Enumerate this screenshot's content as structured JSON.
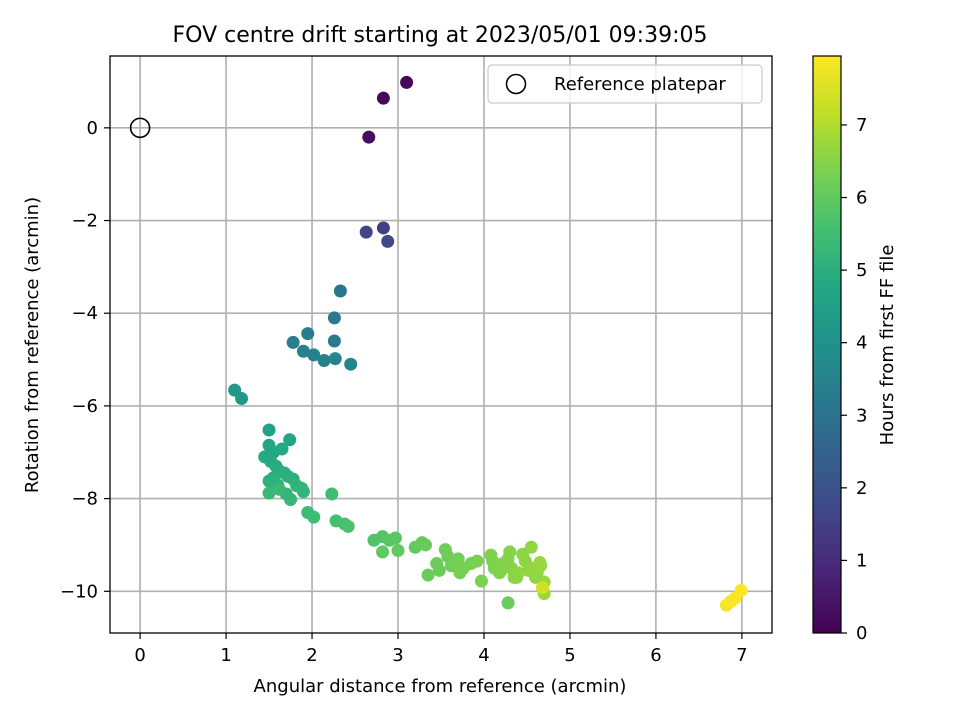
{
  "chart_data": {
    "type": "scatter",
    "title": "FOV centre drift starting at 2023/05/01 09:39:05",
    "xlabel": "Angular distance from reference (arcmin)",
    "ylabel": "Rotation from reference (arcmin)",
    "xlim": [
      -0.35,
      7.35
    ],
    "ylim": [
      -10.9,
      1.55
    ],
    "xticks": [
      0,
      1,
      2,
      3,
      4,
      5,
      6,
      7
    ],
    "xtick_labels": [
      "0",
      "1",
      "2",
      "3",
      "4",
      "5",
      "6",
      "7"
    ],
    "yticks": [
      0,
      -2,
      -4,
      -6,
      -8,
      -10
    ],
    "ytick_labels": [
      "0",
      "−2",
      "−4",
      "−6",
      "−8",
      "−10"
    ],
    "grid": true,
    "legend_position": "top-right",
    "colormap": "viridis",
    "colorbar": {
      "label": "Hours from first FF file",
      "range": [
        0,
        7.95
      ],
      "ticks": [
        0,
        1,
        2,
        3,
        4,
        5,
        6,
        7
      ],
      "tick_labels": [
        "0",
        "1",
        "2",
        "3",
        "4",
        "5",
        "6",
        "7"
      ]
    },
    "reference": {
      "name": "Reference platepar",
      "x": 0,
      "y": 0,
      "marker": "hollow circle",
      "color": "#000000"
    },
    "series": [
      {
        "x": [
          3.1,
          2.83,
          2.66,
          2.83,
          2.63,
          2.88,
          2.33,
          2.26,
          2.26,
          1.95,
          1.78,
          1.9,
          2.02,
          2.14,
          2.27,
          2.45,
          1.1,
          1.18,
          1.5,
          1.74,
          1.5,
          1.55,
          1.65,
          1.45,
          1.52,
          1.58,
          1.62,
          1.68,
          1.55,
          1.72,
          1.78,
          1.5,
          1.6,
          1.82,
          1.88,
          1.9,
          1.7,
          1.75,
          1.5,
          1.62,
          1.95,
          2.02,
          2.23,
          2.28,
          2.38,
          2.42,
          2.72,
          2.82,
          2.9,
          2.97,
          2.82,
          3.0,
          3.2,
          3.28,
          3.32,
          3.35,
          3.45,
          3.48,
          3.55,
          3.58,
          3.62,
          3.7,
          3.76,
          3.72,
          3.85,
          3.92,
          3.97,
          4.08,
          4.12,
          4.18,
          4.22,
          4.28,
          4.32,
          4.38,
          4.45,
          4.48,
          4.52,
          4.58,
          4.62,
          4.66,
          4.7,
          4.1,
          4.15,
          4.2,
          4.25,
          4.3,
          4.35,
          4.4,
          4.55,
          4.6,
          4.65,
          4.28,
          4.7,
          4.68,
          6.82,
          6.87,
          6.92,
          6.99
        ],
        "y": [
          0.98,
          0.64,
          -0.2,
          -2.16,
          -2.25,
          -2.45,
          -3.52,
          -4.1,
          -4.6,
          -4.44,
          -4.63,
          -4.82,
          -4.9,
          -5.02,
          -4.98,
          -5.1,
          -5.66,
          -5.84,
          -6.52,
          -6.73,
          -6.85,
          -7.0,
          -6.93,
          -7.1,
          -7.2,
          -7.3,
          -7.4,
          -7.45,
          -7.55,
          -7.52,
          -7.58,
          -7.62,
          -7.7,
          -7.72,
          -7.78,
          -7.85,
          -7.9,
          -8.02,
          -7.88,
          -7.8,
          -8.3,
          -8.4,
          -7.9,
          -8.48,
          -8.55,
          -8.6,
          -8.9,
          -8.82,
          -8.9,
          -8.85,
          -9.15,
          -9.12,
          -9.05,
          -8.95,
          -9.0,
          -9.65,
          -9.4,
          -9.55,
          -9.1,
          -9.25,
          -9.45,
          -9.3,
          -9.5,
          -9.6,
          -9.4,
          -9.35,
          -9.78,
          -9.22,
          -9.5,
          -9.6,
          -9.4,
          -9.3,
          -9.5,
          -9.7,
          -9.2,
          -9.35,
          -9.55,
          -9.5,
          -9.6,
          -9.45,
          -9.8,
          -9.35,
          -9.45,
          -9.55,
          -9.45,
          -9.15,
          -9.7,
          -9.6,
          -9.05,
          -9.7,
          -9.38,
          -10.25,
          -10.05,
          -9.92,
          -10.3,
          -10.22,
          -10.15,
          -9.98
        ],
        "hours": [
          0.15,
          0.25,
          0.3,
          1.5,
          1.65,
          1.7,
          3.1,
          3.2,
          3.25,
          3.3,
          3.35,
          3.4,
          3.45,
          3.5,
          3.55,
          3.6,
          4.2,
          4.25,
          4.6,
          4.65,
          4.7,
          4.75,
          4.8,
          4.82,
          4.85,
          4.88,
          4.9,
          4.95,
          5.0,
          5.02,
          5.05,
          5.07,
          5.1,
          5.12,
          5.15,
          5.17,
          5.2,
          5.25,
          5.3,
          5.35,
          5.4,
          5.45,
          5.5,
          5.55,
          5.6,
          5.65,
          5.75,
          5.8,
          5.85,
          5.9,
          5.95,
          6.0,
          6.02,
          6.05,
          6.08,
          6.1,
          6.12,
          6.15,
          6.17,
          6.2,
          6.22,
          6.25,
          6.27,
          6.3,
          6.32,
          6.35,
          6.37,
          6.4,
          6.42,
          6.45,
          6.47,
          6.5,
          6.52,
          6.55,
          6.57,
          6.6,
          6.62,
          6.65,
          6.67,
          6.7,
          6.72,
          6.4,
          6.42,
          6.45,
          6.48,
          6.5,
          6.55,
          6.6,
          6.62,
          6.65,
          6.7,
          6.1,
          6.75,
          7.4,
          7.85,
          7.88,
          7.9,
          7.95
        ]
      }
    ]
  }
}
